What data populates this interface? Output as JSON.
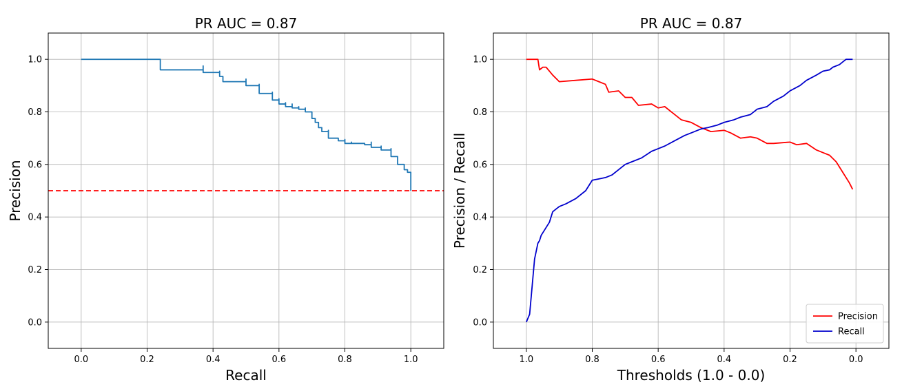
{
  "chart_data": [
    {
      "type": "line",
      "title": "PR AUC = 0.87",
      "xlabel": "Recall",
      "ylabel": "Precision",
      "xlim": [
        -0.1,
        1.1
      ],
      "ylim": [
        -0.1,
        1.1
      ],
      "grid": true,
      "xticks": [
        0.0,
        0.2,
        0.4,
        0.6,
        0.8,
        1.0
      ],
      "yticks": [
        0.0,
        0.2,
        0.4,
        0.6,
        0.8,
        1.0
      ],
      "xtick_labels": [
        "0.0",
        "0.2",
        "0.4",
        "0.6",
        "0.8",
        "1.0"
      ],
      "ytick_labels": [
        "0.0",
        "0.2",
        "0.4",
        "0.6",
        "0.8",
        "1.0"
      ],
      "series": [
        {
          "color": "#1f77b4",
          "step": true,
          "x": [
            0.0,
            0.24,
            0.24,
            0.37,
            0.37,
            0.42,
            0.42,
            0.43,
            0.43,
            0.5,
            0.5,
            0.54,
            0.54,
            0.58,
            0.58,
            0.6,
            0.6,
            0.62,
            0.62,
            0.64,
            0.64,
            0.66,
            0.66,
            0.68,
            0.68,
            0.7,
            0.7,
            0.71,
            0.71,
            0.72,
            0.72,
            0.73,
            0.73,
            0.75,
            0.75,
            0.78,
            0.78,
            0.8,
            0.8,
            0.82,
            0.82,
            0.86,
            0.86,
            0.88,
            0.88,
            0.91,
            0.91,
            0.94,
            0.94,
            0.96,
            0.96,
            0.98,
            0.98,
            0.99,
            0.99,
            1.0,
            1.0
          ],
          "y": [
            1.0,
            1.0,
            0.96,
            0.975,
            0.95,
            0.955,
            0.935,
            0.935,
            0.915,
            0.925,
            0.9,
            0.905,
            0.87,
            0.875,
            0.845,
            0.85,
            0.83,
            0.835,
            0.82,
            0.83,
            0.815,
            0.82,
            0.81,
            0.815,
            0.8,
            0.8,
            0.775,
            0.77,
            0.76,
            0.755,
            0.74,
            0.74,
            0.725,
            0.73,
            0.7,
            0.7,
            0.69,
            0.695,
            0.68,
            0.685,
            0.68,
            0.68,
            0.675,
            0.685,
            0.665,
            0.67,
            0.655,
            0.66,
            0.63,
            0.62,
            0.6,
            0.595,
            0.58,
            0.58,
            0.57,
            0.57,
            0.5
          ]
        },
        {
          "color": "#ff0000",
          "dashed": true,
          "x": [
            -0.1,
            1.1
          ],
          "y": [
            0.5,
            0.5
          ]
        }
      ]
    },
    {
      "type": "line",
      "title": "PR AUC = 0.87",
      "xlabel": "Thresholds (1.0 - 0.0)",
      "ylabel": "Precision / Recall",
      "xlim": [
        1.1,
        -0.1
      ],
      "ylim": [
        -0.1,
        1.1
      ],
      "grid": true,
      "legend": "bottom-right",
      "xticks": [
        1.0,
        0.8,
        0.6,
        0.4,
        0.2,
        0.0
      ],
      "yticks": [
        0.0,
        0.2,
        0.4,
        0.6,
        0.8,
        1.0
      ],
      "xtick_labels": [
        "1.0",
        "0.8",
        "0.6",
        "0.4",
        "0.2",
        "0.0"
      ],
      "ytick_labels": [
        "0.0",
        "0.2",
        "0.4",
        "0.6",
        "0.8",
        "1.0"
      ],
      "series": [
        {
          "name": "Precision",
          "color": "#ff0000",
          "x": [
            1.0,
            0.965,
            0.96,
            0.95,
            0.94,
            0.92,
            0.9,
            0.85,
            0.8,
            0.78,
            0.76,
            0.75,
            0.72,
            0.7,
            0.68,
            0.66,
            0.62,
            0.6,
            0.58,
            0.55,
            0.53,
            0.5,
            0.47,
            0.44,
            0.4,
            0.38,
            0.35,
            0.32,
            0.3,
            0.27,
            0.25,
            0.2,
            0.18,
            0.15,
            0.12,
            0.1,
            0.08,
            0.06,
            0.04,
            0.02,
            0.01
          ],
          "y": [
            1.0,
            1.0,
            0.96,
            0.97,
            0.97,
            0.94,
            0.915,
            0.92,
            0.925,
            0.915,
            0.905,
            0.875,
            0.88,
            0.855,
            0.855,
            0.825,
            0.83,
            0.815,
            0.82,
            0.79,
            0.77,
            0.76,
            0.74,
            0.725,
            0.73,
            0.72,
            0.7,
            0.705,
            0.7,
            0.68,
            0.68,
            0.685,
            0.675,
            0.68,
            0.655,
            0.645,
            0.635,
            0.61,
            0.57,
            0.53,
            0.505
          ]
        },
        {
          "name": "Recall",
          "color": "#0000cc",
          "x": [
            1.0,
            0.99,
            0.985,
            0.98,
            0.975,
            0.97,
            0.965,
            0.96,
            0.955,
            0.95,
            0.94,
            0.93,
            0.92,
            0.91,
            0.9,
            0.88,
            0.85,
            0.82,
            0.8,
            0.78,
            0.76,
            0.74,
            0.72,
            0.7,
            0.68,
            0.65,
            0.62,
            0.6,
            0.58,
            0.55,
            0.52,
            0.5,
            0.47,
            0.45,
            0.42,
            0.4,
            0.37,
            0.35,
            0.32,
            0.3,
            0.27,
            0.25,
            0.22,
            0.2,
            0.17,
            0.15,
            0.12,
            0.1,
            0.08,
            0.07,
            0.05,
            0.04,
            0.03,
            0.01
          ],
          "y": [
            0.0,
            0.03,
            0.1,
            0.17,
            0.24,
            0.27,
            0.3,
            0.31,
            0.33,
            0.34,
            0.36,
            0.38,
            0.42,
            0.43,
            0.44,
            0.45,
            0.47,
            0.5,
            0.54,
            0.545,
            0.55,
            0.56,
            0.58,
            0.6,
            0.61,
            0.625,
            0.65,
            0.66,
            0.67,
            0.69,
            0.71,
            0.72,
            0.735,
            0.74,
            0.75,
            0.76,
            0.77,
            0.78,
            0.79,
            0.81,
            0.82,
            0.84,
            0.86,
            0.88,
            0.9,
            0.92,
            0.94,
            0.955,
            0.96,
            0.97,
            0.98,
            0.99,
            1.0,
            1.0
          ]
        }
      ]
    }
  ]
}
